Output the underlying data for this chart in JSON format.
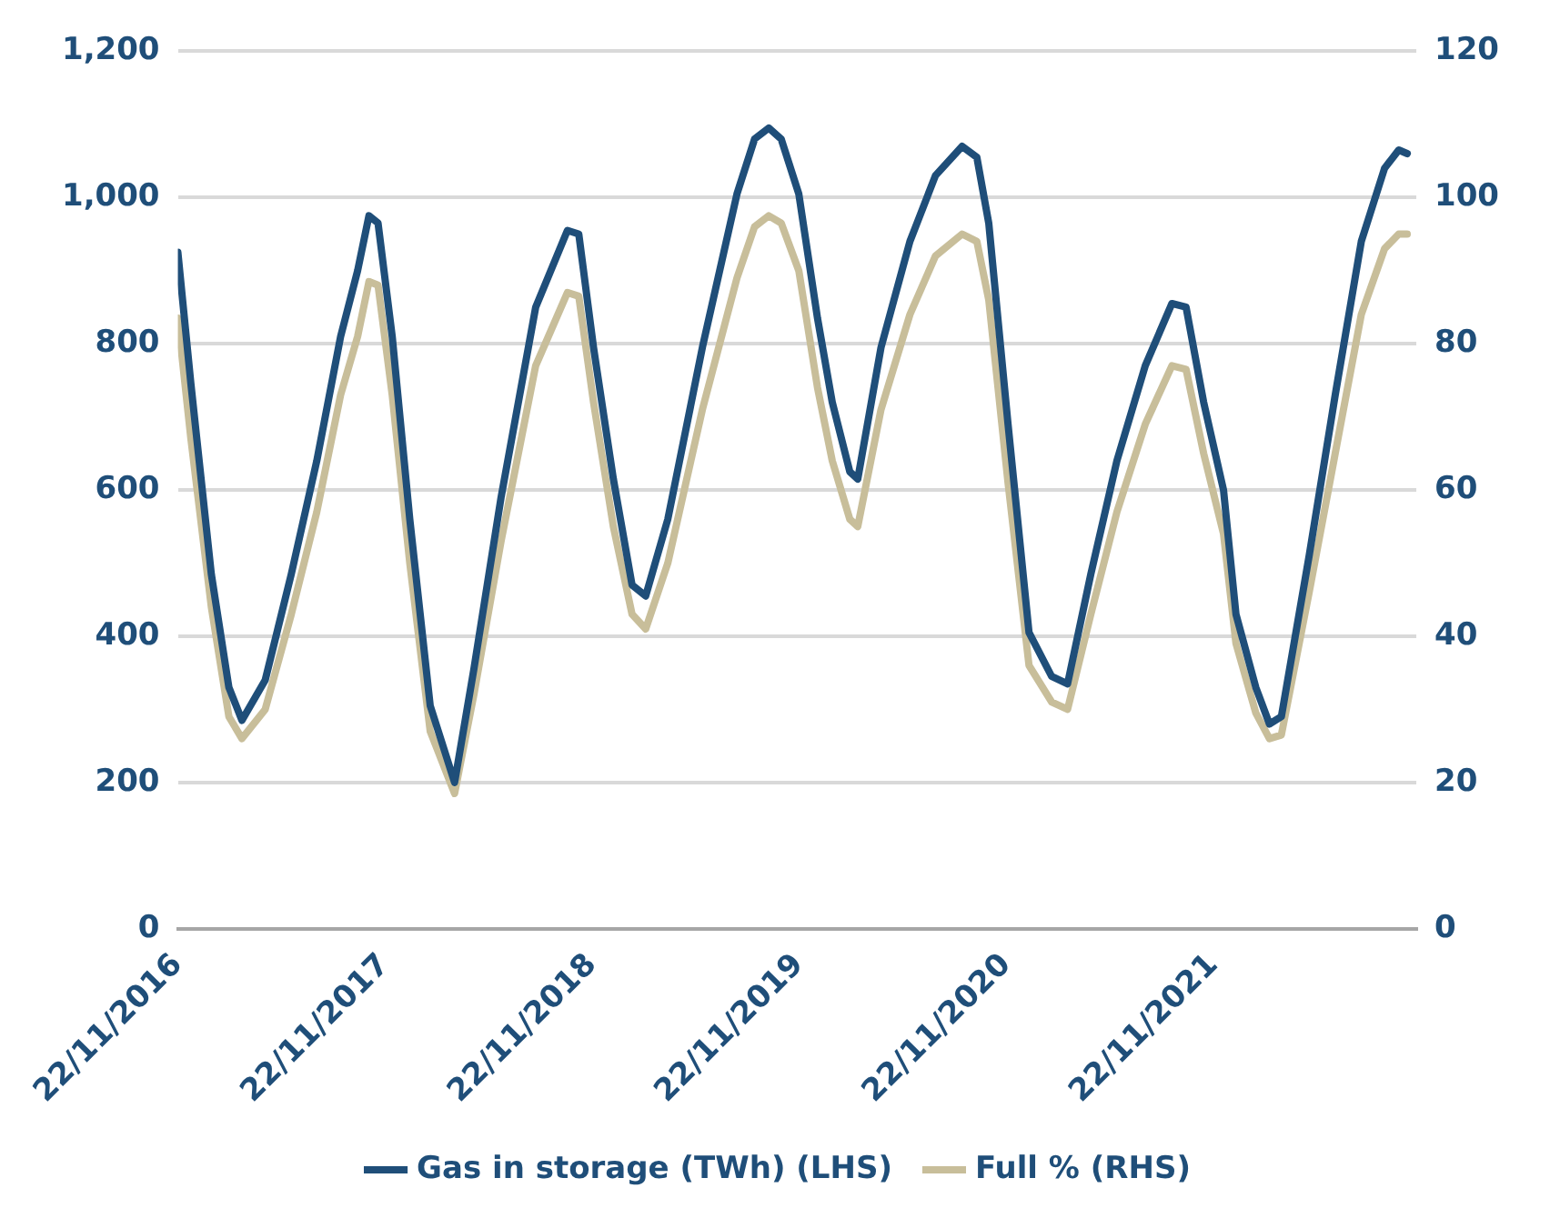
{
  "chart_data": {
    "type": "line",
    "x": [
      "2016-11-22",
      "2016-12-15",
      "2017-01-20",
      "2017-02-20",
      "2017-03-15",
      "2017-04-25",
      "2017-06-10",
      "2017-07-25",
      "2017-09-05",
      "2017-10-05",
      "2017-10-25",
      "2017-11-10",
      "2017-12-05",
      "2018-01-05",
      "2018-02-10",
      "2018-03-25",
      "2018-04-28",
      "2018-06-15",
      "2018-08-15",
      "2018-10-10",
      "2018-10-30",
      "2018-11-25",
      "2018-12-30",
      "2019-02-01",
      "2019-02-25",
      "2019-04-05",
      "2019-06-05",
      "2019-08-05",
      "2019-09-05",
      "2019-09-30",
      "2019-10-22",
      "2019-11-22",
      "2019-12-25",
      "2020-01-20",
      "2020-02-20",
      "2020-03-05",
      "2020-04-15",
      "2020-06-05",
      "2020-07-20",
      "2020-09-05",
      "2020-10-01",
      "2020-10-22",
      "2020-11-25",
      "2021-01-01",
      "2021-02-10",
      "2021-03-10",
      "2021-04-20",
      "2021-06-05",
      "2021-07-25",
      "2021-09-10",
      "2021-10-05",
      "2021-11-05",
      "2021-12-10",
      "2022-01-01",
      "2022-02-05",
      "2022-03-01",
      "2022-03-22",
      "2022-05-10",
      "2022-06-25",
      "2022-08-10",
      "2022-09-20",
      "2022-10-15",
      "2022-10-30"
    ],
    "series": [
      {
        "name": "Gas in storage (TWh) (LHS)",
        "color": "#1f4e79",
        "values": [
          925,
          745,
          485,
          330,
          285,
          340,
          485,
          640,
          810,
          900,
          975,
          965,
          810,
          560,
          305,
          200,
          355,
          590,
          850,
          955,
          950,
          795,
          615,
          470,
          455,
          560,
          795,
          1005,
          1080,
          1095,
          1080,
          1005,
          835,
          720,
          625,
          615,
          795,
          940,
          1030,
          1070,
          1055,
          965,
          690,
          405,
          345,
          335,
          485,
          640,
          770,
          855,
          850,
          720,
          600,
          430,
          330,
          280,
          290,
          510,
          730,
          940,
          1040,
          1065,
          1060
        ]
      },
      {
        "name": "Full % (RHS)",
        "color": "#c8be9a",
        "axis": "y2",
        "values": [
          83.5,
          67,
          44,
          29,
          26,
          30,
          43,
          57,
          73,
          81,
          88.5,
          88,
          73,
          50,
          27,
          18.5,
          32,
          53,
          77,
          87,
          86.5,
          72,
          55,
          43,
          41,
          50,
          71,
          89,
          96,
          97.5,
          96.5,
          90,
          74,
          64,
          56,
          55,
          71,
          84,
          92,
          95,
          94,
          86,
          61,
          36,
          31,
          30,
          43,
          57,
          69,
          77,
          76.5,
          65,
          54,
          39,
          29.5,
          26,
          26.5,
          46,
          65,
          84,
          93,
          95,
          95
        ]
      }
    ],
    "xlim": [
      "2016-11-22",
      "2022-11-15"
    ],
    "xticks": [
      {
        "value": "2016-11-22",
        "label": "22/11/2016"
      },
      {
        "value": "2017-11-22",
        "label": "22/11/2017"
      },
      {
        "value": "2018-11-22",
        "label": "22/11/2018"
      },
      {
        "value": "2019-11-22",
        "label": "22/11/2019"
      },
      {
        "value": "2020-11-22",
        "label": "22/11/2020"
      },
      {
        "value": "2021-11-22",
        "label": "22/11/2021"
      }
    ],
    "ylim": [
      0,
      1200
    ],
    "yticks": [
      0,
      {
        "value": 200,
        "label": "200"
      },
      {
        "value": 400,
        "label": "400"
      },
      {
        "value": 600,
        "label": "600"
      },
      {
        "value": 800,
        "label": "800"
      },
      {
        "value": 1000,
        "label": "1,000"
      },
      {
        "value": 1200,
        "label": "1,200"
      }
    ],
    "y2lim": [
      0,
      120
    ],
    "y2ticks": [
      0,
      20,
      40,
      60,
      80,
      100,
      120
    ],
    "grid": "y",
    "legend": "bottom",
    "marker": "none",
    "line_style": "solid"
  }
}
